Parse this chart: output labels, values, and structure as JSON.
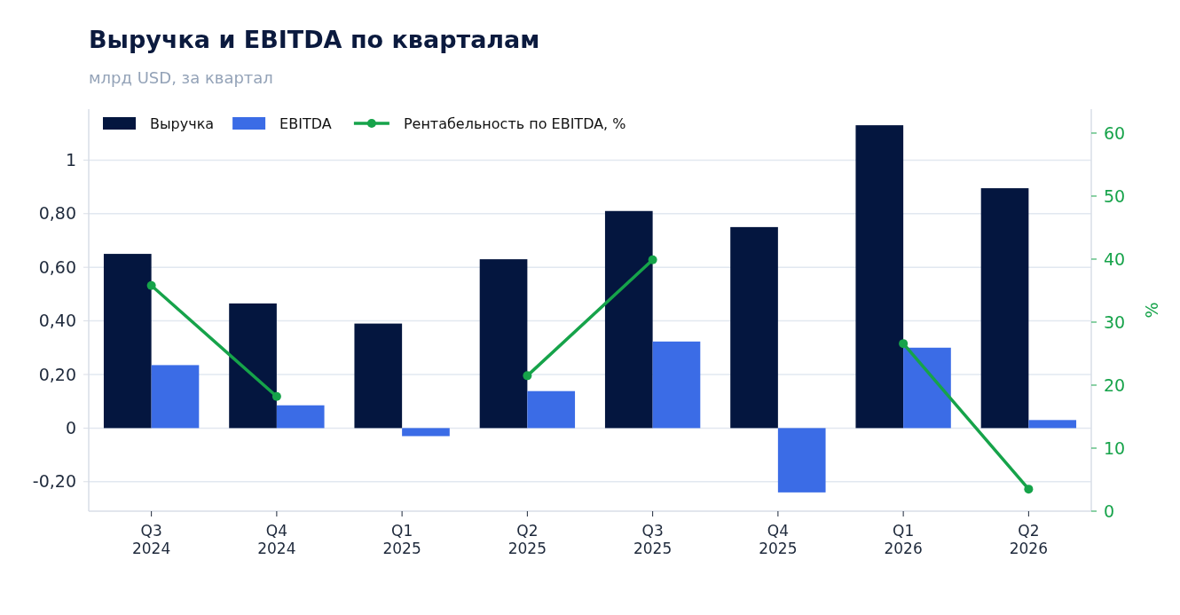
{
  "chart_data": {
    "type": "bar",
    "title": "Выручка и EBITDA по кварталам",
    "subtitle": "млрд USD, за квартал",
    "categories": [
      "Q3\n2024",
      "Q4\n2024",
      "Q1\n2025",
      "Q2\n2025",
      "Q3\n2025",
      "Q4\n2025",
      "Q1\n2026",
      "Q2\n2026"
    ],
    "series": [
      {
        "name": "Выручка",
        "color": "#04163f",
        "values": [
          0.65,
          0.465,
          0.39,
          0.63,
          0.81,
          0.75,
          1.13,
          0.895
        ]
      },
      {
        "name": "EBITDA",
        "color": "#3b6ce6",
        "values": [
          0.235,
          0.085,
          -0.03,
          0.138,
          0.323,
          -0.24,
          0.3,
          0.03
        ]
      },
      {
        "name": "Рентабельность по EBITDA, %",
        "type": "line",
        "axis": "y2",
        "color": "#16a34a",
        "marker": "circle",
        "values": [
          35.8,
          18.2,
          null,
          21.5,
          39.9,
          null,
          26.6,
          3.5
        ]
      }
    ],
    "ylim": [
      -0.31,
      1.19
    ],
    "yticks": [
      {
        "value": -0.2,
        "label": "-0,20"
      },
      0,
      {
        "value": 0.2,
        "label": "0,20"
      },
      {
        "value": 0.4,
        "label": "0,40"
      },
      {
        "value": 0.6,
        "label": "0,60"
      },
      {
        "value": 0.8,
        "label": "0,80"
      },
      1
    ],
    "y2lim": [
      0,
      63.8
    ],
    "y2ticks": [
      0,
      10,
      20,
      30,
      40,
      50,
      60
    ],
    "y2label": "%",
    "grid": "y",
    "legend": "top left"
  }
}
